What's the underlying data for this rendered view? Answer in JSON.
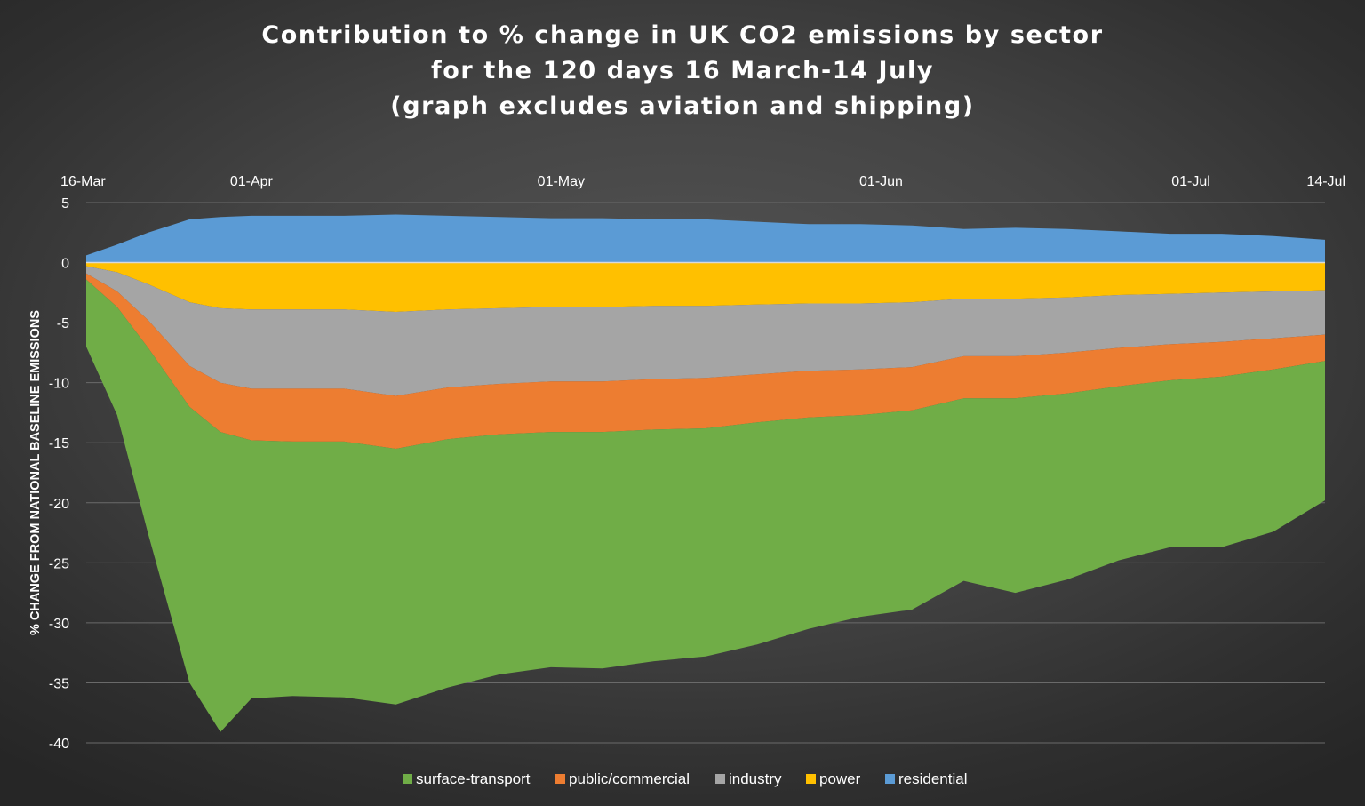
{
  "chart_data": {
    "type": "area",
    "title_lines": [
      "Contribution to % change in UK CO2 emissions by sector",
      "for the 120 days 16 March-14 July",
      "(graph excludes aviation and shipping)"
    ],
    "ylabel": "% CHANGE FROM NATIONAL BASELINE EMISSIONS",
    "ylim": [
      -40,
      5
    ],
    "yticks": [
      5,
      0,
      -5,
      -10,
      -15,
      -20,
      -25,
      -30,
      -35,
      -40
    ],
    "xlim": [
      0,
      120
    ],
    "xticks": [
      {
        "day": 0,
        "label": "16-Mar"
      },
      {
        "day": 16,
        "label": "01-Apr"
      },
      {
        "day": 46,
        "label": "01-May"
      },
      {
        "day": 77,
        "label": "01-Jun"
      },
      {
        "day": 107,
        "label": "01-Jul"
      },
      {
        "day": 120,
        "label": "14-Jul"
      }
    ],
    "grid": true,
    "legend_position": "bottom",
    "x_days": [
      0,
      3,
      6,
      10,
      13,
      16,
      20,
      25,
      30,
      35,
      40,
      45,
      50,
      55,
      60,
      65,
      70,
      75,
      80,
      85,
      90,
      95,
      100,
      105,
      110,
      115,
      120
    ],
    "series": [
      {
        "name": "residential",
        "color": "#5b9bd5",
        "direction": "positive",
        "values": [
          0.6,
          1.5,
          2.5,
          3.6,
          3.8,
          3.9,
          3.9,
          3.9,
          4.0,
          3.9,
          3.8,
          3.7,
          3.7,
          3.6,
          3.6,
          3.4,
          3.2,
          3.2,
          3.1,
          2.8,
          2.9,
          2.8,
          2.6,
          2.4,
          2.4,
          2.2,
          1.9
        ]
      },
      {
        "name": "power",
        "color": "#ffc000",
        "direction": "negative",
        "values": [
          -0.3,
          -0.8,
          -1.8,
          -3.3,
          -3.8,
          -3.9,
          -3.9,
          -3.9,
          -4.1,
          -3.9,
          -3.8,
          -3.7,
          -3.7,
          -3.6,
          -3.6,
          -3.5,
          -3.4,
          -3.4,
          -3.3,
          -3.0,
          -3.0,
          -2.9,
          -2.7,
          -2.6,
          -2.5,
          -2.4,
          -2.3
        ]
      },
      {
        "name": "industry",
        "color": "#a5a5a5",
        "direction": "negative",
        "values": [
          -0.6,
          -1.6,
          -3.0,
          -5.3,
          -6.2,
          -6.6,
          -6.6,
          -6.6,
          -7.0,
          -6.5,
          -6.3,
          -6.2,
          -6.2,
          -6.1,
          -6.0,
          -5.8,
          -5.6,
          -5.5,
          -5.4,
          -4.8,
          -4.8,
          -4.6,
          -4.4,
          -4.2,
          -4.1,
          -3.9,
          -3.7
        ]
      },
      {
        "name": "public/commercial",
        "color": "#ed7d31",
        "direction": "negative",
        "values": [
          -0.5,
          -1.3,
          -2.3,
          -3.4,
          -4.1,
          -4.3,
          -4.4,
          -4.4,
          -4.4,
          -4.3,
          -4.2,
          -4.2,
          -4.2,
          -4.2,
          -4.2,
          -4.0,
          -3.9,
          -3.8,
          -3.6,
          -3.5,
          -3.5,
          -3.4,
          -3.2,
          -3.0,
          -2.9,
          -2.6,
          -2.2
        ]
      },
      {
        "name": "surface-transport",
        "color": "#70ad47",
        "direction": "negative",
        "values": [
          -5.6,
          -9.0,
          -15.5,
          -23.0,
          -25.0,
          -21.5,
          -21.2,
          -21.3,
          -21.3,
          -20.7,
          -20.0,
          -19.6,
          -19.7,
          -19.3,
          -19.0,
          -18.5,
          -17.6,
          -16.8,
          -16.6,
          -15.2,
          -16.2,
          -15.5,
          -14.5,
          -13.9,
          -14.2,
          -13.5,
          -11.6
        ]
      }
    ],
    "legend_order": [
      "surface-transport",
      "public/commercial",
      "industry",
      "power",
      "residential"
    ]
  }
}
